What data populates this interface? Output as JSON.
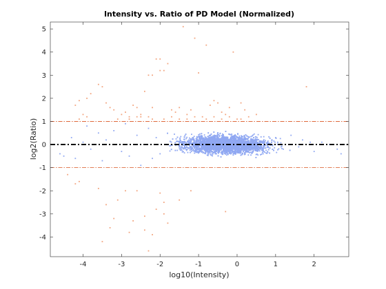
{
  "chart_data": {
    "type": "scatter",
    "title": "Intensity vs. Ratio of PD Model (Normalized)",
    "xlabel": "log10(Intensity)",
    "ylabel": "log2(Ratio)",
    "xlim": [
      -4.85,
      2.9
    ],
    "ylim": [
      -4.85,
      5.3
    ],
    "x_ticks": [
      -4,
      -3,
      -2,
      -1,
      0,
      1,
      2
    ],
    "y_ticks": [
      -4,
      -3,
      -2,
      -1,
      0,
      1,
      2,
      3,
      4,
      5
    ],
    "grid": false,
    "legend": "none",
    "colors": {
      "within_threshold": "#90a8f2",
      "outside_threshold": "#f2a37d",
      "zero_line": "#000000",
      "threshold_line": "#d9531e",
      "axes": "#262626"
    },
    "reference_lines": [
      {
        "y": 0,
        "style": "dash-dot",
        "color": "#000000"
      },
      {
        "y": 1,
        "style": "dash-dot",
        "color": "#d9531e"
      },
      {
        "y": -1,
        "style": "dash-dot",
        "color": "#d9531e"
      }
    ],
    "series": [
      {
        "color": "#90a8f2",
        "description": "points with |log2(Ratio)| <= 1",
        "cloud": {
          "x_center": -0.3,
          "x_spread": 0.75,
          "x_min": -4.7,
          "x_max": 2.7,
          "y_spread": 0.25
        },
        "x": [
          -4.6,
          -4.5,
          -4.3,
          -4.2,
          -4.0,
          -3.9,
          -3.8,
          -3.6,
          -3.5,
          -3.4,
          -3.2,
          -3.0,
          -2.9,
          -2.8,
          -2.6,
          -2.5,
          -2.3,
          -2.2,
          -2.1,
          -2.0,
          1.0,
          1.2,
          1.4,
          1.6,
          1.7,
          1.9,
          2.0,
          2.2,
          2.4,
          2.6,
          2.7
        ],
        "y": [
          -0.4,
          -0.5,
          0.3,
          -0.6,
          0.1,
          0.8,
          -0.2,
          0.5,
          -0.7,
          0.2,
          0.6,
          -0.3,
          0.9,
          -0.5,
          0.4,
          -0.9,
          0.7,
          -0.6,
          0.3,
          -0.4,
          0.3,
          -0.2,
          0.4,
          -0.1,
          0.2,
          0.1,
          -0.3,
          0.1,
          0.0,
          -0.2,
          -0.4
        ]
      },
      {
        "color": "#f2a37d",
        "description": "points with |log2(Ratio)| > 1",
        "x": [
          -1.4,
          -1.1,
          -1.0,
          -0.8,
          -0.1,
          1.8,
          -2.1,
          -2.0,
          -2.0,
          -1.9,
          -1.8,
          -2.2,
          -2.3,
          -2.4,
          -3.6,
          -3.5,
          -3.8,
          -3.9,
          -4.1,
          -4.2,
          -3.4,
          -3.3,
          -3.2,
          -3.0,
          -2.9,
          -2.8,
          -2.6,
          -2.5,
          -2.7,
          -2.2,
          -1.7,
          -1.6,
          -1.5,
          -1.3,
          -1.2,
          -0.9,
          -0.7,
          -0.6,
          -0.5,
          -0.4,
          -0.3,
          -0.2,
          0.1,
          0.2,
          0.3,
          0.5,
          -4.1,
          -4.0,
          -3.9,
          -2.8,
          -2.6,
          -3.1,
          -2.5,
          -2.3,
          -2.2,
          -1.9,
          -1.7,
          -1.5,
          -1.3,
          -1.1,
          -0.8,
          -0.6,
          -0.4,
          -0.2,
          0.0,
          0.1,
          -4.4,
          -4.2,
          -4.1,
          -3.6,
          -3.4,
          -2.9,
          -3.1,
          -2.1,
          -2.4,
          -2.6,
          -2.0,
          -1.5,
          -1.9,
          -1.2,
          -0.3,
          -3.5,
          -3.3,
          -3.2,
          -2.8,
          -2.7,
          -2.4,
          -2.2,
          -2.3,
          -1.9,
          -1.8
        ],
        "y": [
          5.1,
          4.6,
          3.1,
          4.3,
          4.0,
          2.5,
          3.7,
          3.2,
          3.7,
          3.2,
          3.5,
          3.0,
          3.0,
          2.3,
          2.6,
          2.5,
          2.2,
          2.0,
          1.9,
          1.7,
          1.8,
          1.6,
          1.5,
          1.3,
          1.4,
          1.2,
          1.6,
          1.2,
          1.7,
          1.6,
          1.5,
          1.4,
          1.6,
          1.3,
          1.5,
          1.2,
          1.7,
          1.9,
          1.8,
          1.4,
          1.3,
          1.6,
          1.8,
          1.5,
          1.2,
          1.3,
          1.1,
          1.3,
          1.2,
          1.1,
          1.2,
          1.1,
          1.3,
          1.2,
          1.1,
          1.1,
          1.2,
          1.1,
          1.1,
          1.2,
          1.1,
          1.2,
          1.1,
          1.2,
          1.1,
          1.1,
          -1.3,
          -1.7,
          -1.6,
          -1.9,
          -2.6,
          -2.0,
          -2.4,
          -2.8,
          -3.1,
          -2.0,
          -2.1,
          -2.4,
          -2.5,
          -2.0,
          -2.9,
          -4.2,
          -3.6,
          -3.2,
          -3.8,
          -3.3,
          -3.7,
          -3.9,
          -4.6,
          -3.0,
          -3.4
        ]
      }
    ]
  }
}
